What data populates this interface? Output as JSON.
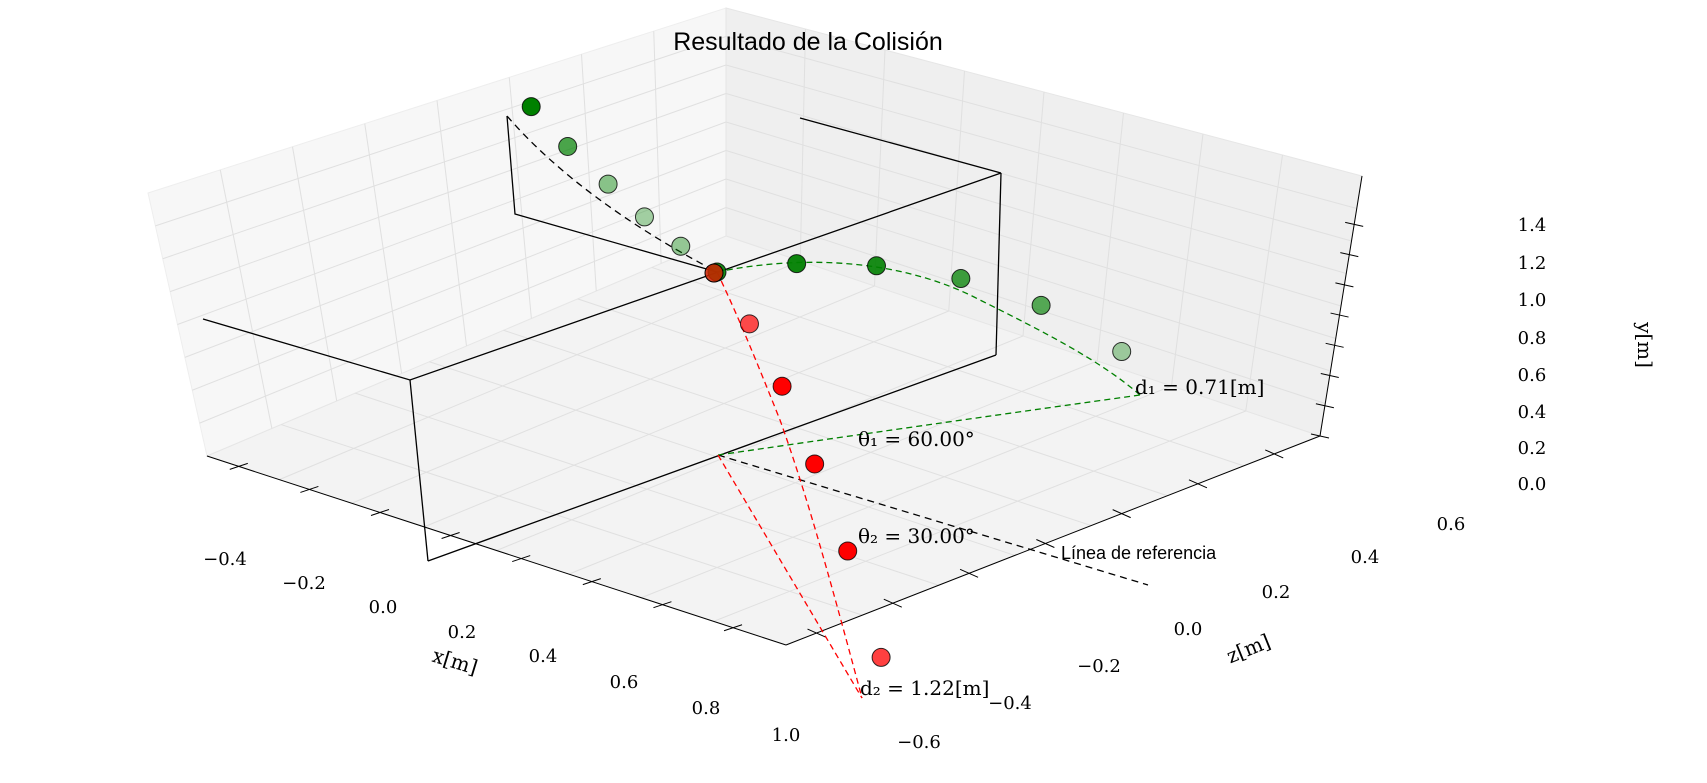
{
  "chart_data": {
    "type": "scatter",
    "title": "Resultado de la Colisión",
    "xlabel": "x[m]",
    "ylabel": "y[m]",
    "zlabel": "z[m]",
    "x_ticks": [
      "−0.4",
      "−0.2",
      "0.0",
      "0.2",
      "0.4",
      "0.6",
      "0.8",
      "1.0"
    ],
    "y_ticks": [
      "0.0",
      "0.2",
      "0.4",
      "0.6",
      "0.8",
      "1.0",
      "1.2",
      "1.4"
    ],
    "z_ticks": [
      "−0.6",
      "−0.4",
      "−0.2",
      "0.0",
      "0.2",
      "0.4",
      "0.6"
    ],
    "grid": true,
    "annotations": {
      "d1": "d₁ = 0.71[m]",
      "d2": "d₂ = 1.22[m]",
      "theta1": "θ₁ = 60.00°",
      "theta2": "θ₂ = 30.00°",
      "reference": "Línea de referencia"
    },
    "series": [
      {
        "color": "#008000",
        "points": [
          {
            "x": -0.46,
            "y": 1.4,
            "z": 0.0
          },
          {
            "x": -0.37,
            "y": 1.24,
            "z": 0.0
          },
          {
            "x": -0.27,
            "y": 1.1,
            "z": 0.0
          },
          {
            "x": -0.18,
            "y": 0.98,
            "z": 0.0
          },
          {
            "x": -0.09,
            "y": 0.88,
            "z": 0.0
          },
          {
            "x": 0.0,
            "y": 0.8,
            "z": 0.0
          }
        ]
      },
      {
        "color": "#008000",
        "points": [
          {
            "x": 0.0,
            "y": 0.8,
            "z": 0.0
          },
          {
            "x": 0.07,
            "y": 0.78,
            "z": 0.12
          },
          {
            "x": 0.14,
            "y": 0.7,
            "z": 0.24
          },
          {
            "x": 0.21,
            "y": 0.55,
            "z": 0.37
          },
          {
            "x": 0.28,
            "y": 0.33,
            "z": 0.49
          },
          {
            "x": 0.35,
            "y": 0.0,
            "z": 0.61
          }
        ]
      },
      {
        "color": "#ff0000",
        "points": [
          {
            "x": 0.0,
            "y": 0.8,
            "z": 0.0
          },
          {
            "x": 0.21,
            "y": 0.78,
            "z": -0.12
          },
          {
            "x": 0.42,
            "y": 0.7,
            "z": -0.24
          },
          {
            "x": 0.64,
            "y": 0.55,
            "z": -0.37
          },
          {
            "x": 0.85,
            "y": 0.33,
            "z": -0.49
          },
          {
            "x": 1.06,
            "y": 0.0,
            "z": -0.61
          }
        ]
      }
    ]
  }
}
